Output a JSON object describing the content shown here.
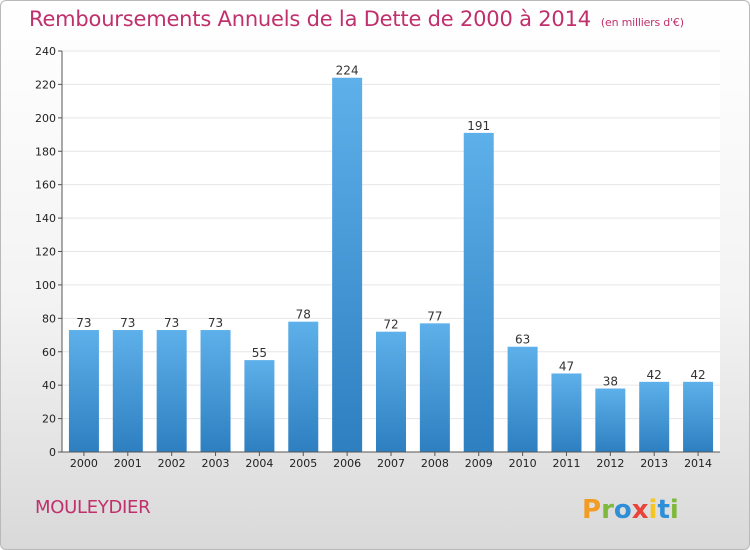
{
  "title": "Remboursements Annuels de la Dette de 2000 à 2014",
  "unit_note": "(en milliers d'€)",
  "commune": "MOULEYDIER",
  "logo_text": "Proxiti",
  "chart_data": {
    "type": "bar",
    "title": "Remboursements Annuels de la Dette de 2000 à 2014",
    "subtitle": "(en milliers d'€)",
    "categories": [
      "2000",
      "2001",
      "2002",
      "2003",
      "2004",
      "2005",
      "2006",
      "2007",
      "2008",
      "2009",
      "2010",
      "2011",
      "2012",
      "2013",
      "2014"
    ],
    "values": [
      73,
      73,
      73,
      73,
      55,
      78,
      224,
      72,
      77,
      191,
      63,
      47,
      38,
      42,
      42
    ],
    "ylim": [
      0,
      240
    ],
    "yticks": [
      0,
      20,
      40,
      60,
      80,
      100,
      120,
      140,
      160,
      180,
      200,
      220,
      240
    ],
    "grid": true,
    "colors": {
      "bar_light": "#5eb0ea",
      "bar_dark": "#2e7fc0",
      "axis": "#555555",
      "grid": "#e6e6e6"
    }
  }
}
